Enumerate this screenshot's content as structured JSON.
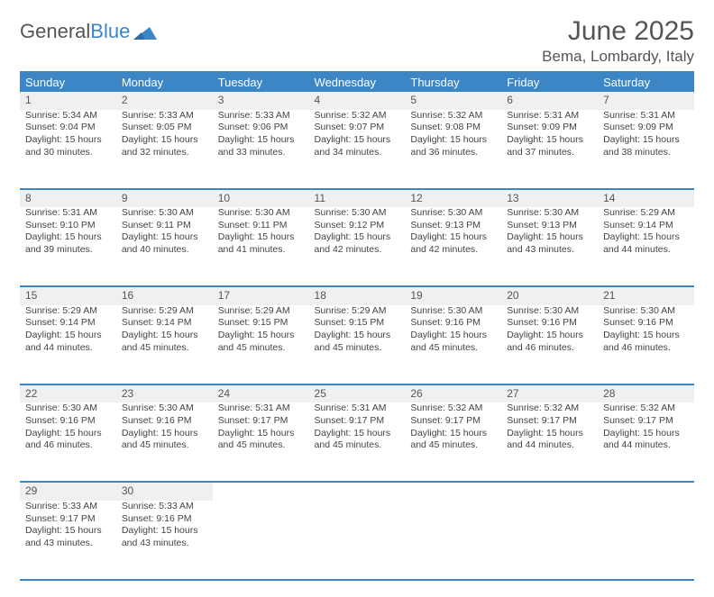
{
  "brand": {
    "line1": "General",
    "line2": "Blue"
  },
  "title": {
    "month_year": "June 2025",
    "location": "Bema, Lombardy, Italy"
  },
  "colors": {
    "accent": "#3d86c6",
    "gray_row": "#eef0f2",
    "text": "#444444",
    "header_text": "#555555"
  },
  "weekdays": [
    "Sunday",
    "Monday",
    "Tuesday",
    "Wednesday",
    "Thursday",
    "Friday",
    "Saturday"
  ],
  "weeks": [
    [
      {
        "day": 1,
        "sunrise": "5:34 AM",
        "sunset": "9:04 PM",
        "daylight": "15 hours and 30 minutes."
      },
      {
        "day": 2,
        "sunrise": "5:33 AM",
        "sunset": "9:05 PM",
        "daylight": "15 hours and 32 minutes."
      },
      {
        "day": 3,
        "sunrise": "5:33 AM",
        "sunset": "9:06 PM",
        "daylight": "15 hours and 33 minutes."
      },
      {
        "day": 4,
        "sunrise": "5:32 AM",
        "sunset": "9:07 PM",
        "daylight": "15 hours and 34 minutes."
      },
      {
        "day": 5,
        "sunrise": "5:32 AM",
        "sunset": "9:08 PM",
        "daylight": "15 hours and 36 minutes."
      },
      {
        "day": 6,
        "sunrise": "5:31 AM",
        "sunset": "9:09 PM",
        "daylight": "15 hours and 37 minutes."
      },
      {
        "day": 7,
        "sunrise": "5:31 AM",
        "sunset": "9:09 PM",
        "daylight": "15 hours and 38 minutes."
      }
    ],
    [
      {
        "day": 8,
        "sunrise": "5:31 AM",
        "sunset": "9:10 PM",
        "daylight": "15 hours and 39 minutes."
      },
      {
        "day": 9,
        "sunrise": "5:30 AM",
        "sunset": "9:11 PM",
        "daylight": "15 hours and 40 minutes."
      },
      {
        "day": 10,
        "sunrise": "5:30 AM",
        "sunset": "9:11 PM",
        "daylight": "15 hours and 41 minutes."
      },
      {
        "day": 11,
        "sunrise": "5:30 AM",
        "sunset": "9:12 PM",
        "daylight": "15 hours and 42 minutes."
      },
      {
        "day": 12,
        "sunrise": "5:30 AM",
        "sunset": "9:13 PM",
        "daylight": "15 hours and 42 minutes."
      },
      {
        "day": 13,
        "sunrise": "5:30 AM",
        "sunset": "9:13 PM",
        "daylight": "15 hours and 43 minutes."
      },
      {
        "day": 14,
        "sunrise": "5:29 AM",
        "sunset": "9:14 PM",
        "daylight": "15 hours and 44 minutes."
      }
    ],
    [
      {
        "day": 15,
        "sunrise": "5:29 AM",
        "sunset": "9:14 PM",
        "daylight": "15 hours and 44 minutes."
      },
      {
        "day": 16,
        "sunrise": "5:29 AM",
        "sunset": "9:14 PM",
        "daylight": "15 hours and 45 minutes."
      },
      {
        "day": 17,
        "sunrise": "5:29 AM",
        "sunset": "9:15 PM",
        "daylight": "15 hours and 45 minutes."
      },
      {
        "day": 18,
        "sunrise": "5:29 AM",
        "sunset": "9:15 PM",
        "daylight": "15 hours and 45 minutes."
      },
      {
        "day": 19,
        "sunrise": "5:30 AM",
        "sunset": "9:16 PM",
        "daylight": "15 hours and 45 minutes."
      },
      {
        "day": 20,
        "sunrise": "5:30 AM",
        "sunset": "9:16 PM",
        "daylight": "15 hours and 46 minutes."
      },
      {
        "day": 21,
        "sunrise": "5:30 AM",
        "sunset": "9:16 PM",
        "daylight": "15 hours and 46 minutes."
      }
    ],
    [
      {
        "day": 22,
        "sunrise": "5:30 AM",
        "sunset": "9:16 PM",
        "daylight": "15 hours and 46 minutes."
      },
      {
        "day": 23,
        "sunrise": "5:30 AM",
        "sunset": "9:16 PM",
        "daylight": "15 hours and 45 minutes."
      },
      {
        "day": 24,
        "sunrise": "5:31 AM",
        "sunset": "9:17 PM",
        "daylight": "15 hours and 45 minutes."
      },
      {
        "day": 25,
        "sunrise": "5:31 AM",
        "sunset": "9:17 PM",
        "daylight": "15 hours and 45 minutes."
      },
      {
        "day": 26,
        "sunrise": "5:32 AM",
        "sunset": "9:17 PM",
        "daylight": "15 hours and 45 minutes."
      },
      {
        "day": 27,
        "sunrise": "5:32 AM",
        "sunset": "9:17 PM",
        "daylight": "15 hours and 44 minutes."
      },
      {
        "day": 28,
        "sunrise": "5:32 AM",
        "sunset": "9:17 PM",
        "daylight": "15 hours and 44 minutes."
      }
    ],
    [
      {
        "day": 29,
        "sunrise": "5:33 AM",
        "sunset": "9:17 PM",
        "daylight": "15 hours and 43 minutes."
      },
      {
        "day": 30,
        "sunrise": "5:33 AM",
        "sunset": "9:16 PM",
        "daylight": "15 hours and 43 minutes."
      },
      null,
      null,
      null,
      null,
      null
    ]
  ],
  "labels": {
    "sunrise": "Sunrise:",
    "sunset": "Sunset:",
    "daylight": "Daylight:"
  }
}
